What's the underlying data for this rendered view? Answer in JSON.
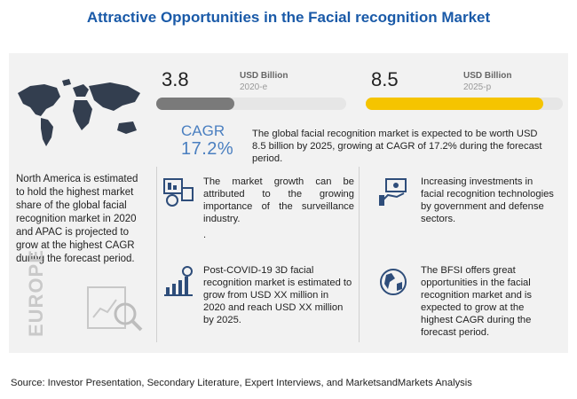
{
  "title": "Attractive Opportunities in the Facial recognition Market",
  "stats": {
    "start": {
      "value": "3.8",
      "unit": "USD Billion",
      "year": "2020-e"
    },
    "end": {
      "value": "8.5",
      "unit": "USD Billion",
      "year": "2025-p"
    }
  },
  "cagr": {
    "label": "CAGR",
    "value": "17.2%",
    "text": "The global facial recognition market is expected to be worth USD 8.5 billion by 2025, growing at CAGR of 17.2% during the forecast period."
  },
  "region_note": "North America is estimated to hold the highest market share of the global facial recognition market in 2020 and APAC is projected to grow at the highest CAGR during the forecast period.",
  "region_label": "EUROPE",
  "cards": {
    "surveillance": "The market growth can be attributed to the growing importance of the surveillance industry.",
    "surveillance_dot": ".",
    "investments": "Increasing investments in facial recognition technologies by government and defense sectors.",
    "covid": "Post-COVID-19 3D facial recognition market is estimated to grow from USD XX million in 2020 and reach USD XX million by 2025.",
    "bfsi": "The BFSI offers great opportunities in the facial recognition market and is expected to grow at the highest CAGR during the forecast period."
  },
  "source": "Source: Investor Presentation, Secondary Literature, Expert Interviews, and MarketsandMarkets Analysis",
  "colors": {
    "title": "#1a5aa8",
    "bar_2020": "#7a7a7a",
    "bar_2025": "#f5c400",
    "accent_blue": "#4a7fc0"
  }
}
